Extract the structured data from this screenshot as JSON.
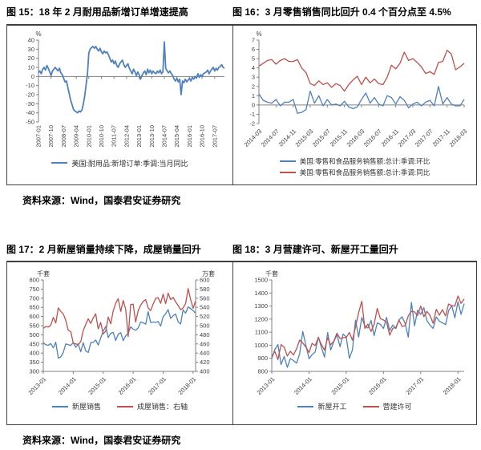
{
  "figures": [
    {
      "title": "图 15：18 年 2 月耐用品新增订单增速提高"
    },
    {
      "title": "图 16：3 月零售销售同比回升 0.4 个百分点至 4.5%"
    },
    {
      "title": "图 17：2 月新屋销量持续下降，成屋销量回升"
    },
    {
      "title": "图 18：3 月营建许可、新屋开工量回升"
    }
  ],
  "source_note": "资料来源：Wind，国泰君安证券研究",
  "colors": {
    "blue": "#4F81BD",
    "red": "#C0504D",
    "axis": "#808080",
    "text": "#404040",
    "border": "#404040"
  },
  "chart_data": [
    {
      "type": "line",
      "unit_left": "%",
      "ylim": [
        -50,
        40
      ],
      "yticks": [
        40,
        30,
        20,
        10,
        0,
        -10,
        -20,
        -30,
        -40,
        -50
      ],
      "x_tick_step": 9,
      "x_label_rotation": 90,
      "x_tick_labels": [
        "2007-01",
        "2007-10",
        "2008-07",
        "2009-04",
        "2010-01",
        "2010-10",
        "2011-07",
        "2012-04",
        "2013-01",
        "2013-10",
        "2014-07",
        "2015-04",
        "2016-01",
        "2016-10",
        "2017-07"
      ],
      "legend_layout": "row",
      "series": [
        {
          "name": "美国:耐用品:新增订单:季调:当月同比",
          "color": "#4F81BD",
          "axis": "left",
          "width": 1.8,
          "values": [
            4,
            6,
            3,
            8,
            10,
            7,
            12,
            9,
            5,
            1,
            6,
            8,
            10,
            8,
            6,
            9,
            4,
            2,
            -2,
            -6,
            -5,
            -12,
            -19,
            -26,
            -31,
            -36,
            -38,
            -39,
            -40,
            -38,
            -39,
            -37,
            -31,
            -22,
            -10,
            3,
            26,
            30,
            32,
            33,
            31,
            33,
            30,
            28,
            31,
            27,
            25,
            28,
            26,
            27,
            24,
            20,
            16,
            18,
            14,
            17,
            12,
            10,
            14,
            16,
            18,
            13,
            10,
            12,
            14,
            9,
            6,
            3,
            8,
            5,
            1,
            5,
            2,
            -3,
            1,
            4,
            6,
            2,
            8,
            4,
            7,
            3,
            6,
            4,
            3,
            6,
            4,
            7,
            3,
            5,
            38,
            9,
            6,
            4,
            6,
            3,
            1,
            -3,
            -5,
            -2,
            -6,
            -3,
            -20,
            -5,
            -7,
            -3,
            -6,
            -4,
            -2,
            -5,
            -1,
            -3,
            0,
            -2,
            3,
            -1,
            2,
            0,
            3,
            4,
            5,
            7,
            3,
            6,
            8,
            10,
            6,
            9,
            7,
            10,
            11,
            13,
            10,
            9
          ]
        }
      ]
    },
    {
      "type": "line",
      "unit_left": "%",
      "ylim": [
        -2,
        7
      ],
      "yticks": [
        7,
        6,
        5,
        4,
        3,
        2,
        1,
        0,
        -1,
        -2
      ],
      "x_tick_step": 4,
      "x_label_rotation": 45,
      "x_tick_labels": [
        "2014-03",
        "2014-07",
        "2014-11",
        "2015-03",
        "2015-07",
        "2015-11",
        "2016-03",
        "2016-07",
        "2016-11",
        "2017-03",
        "2017-07",
        "2017-11",
        "2018-03"
      ],
      "legend_layout": "column",
      "series": [
        {
          "name": "美国:零售和食品服务销售额:总计:季调:环比",
          "color": "#4F81BD",
          "axis": "left",
          "width": 1.3,
          "values": [
            1.2,
            0.5,
            0.3,
            0.2,
            0.6,
            -0.1,
            0.3,
            0.3,
            0.6,
            -0.9,
            -0.8,
            -0.5,
            1.5,
            0.2,
            1.0,
            -0.1,
            0.6,
            0.0,
            0.1,
            -0.1,
            0.4,
            -0.2,
            -0.4,
            -0.2,
            0.6,
            1.3,
            0.2,
            0.8,
            0.1,
            -0.1,
            1.0,
            0.8,
            0.1,
            0.9,
            0.5,
            -0.3,
            0.1,
            0.3,
            -0.1,
            0.3,
            0.5,
            -0.1,
            2.0,
            0.1,
            0.8,
            0.1,
            -0.1,
            -0.1,
            0.6
          ]
        },
        {
          "name": "美国:零售和食品服务销售额:总计:季调:同比",
          "color": "#C0504D",
          "axis": "left",
          "width": 1.3,
          "values": [
            4.2,
            4.5,
            4.8,
            4.9,
            4.4,
            4.8,
            5.0,
            4.7,
            4.7,
            4.9,
            4.0,
            3.5,
            2.3,
            2.1,
            2.6,
            2.2,
            2.4,
            1.9,
            2.3,
            2.1,
            1.5,
            2.2,
            2.7,
            3.1,
            2.2,
            3.0,
            2.4,
            2.8,
            2.3,
            2.2,
            3.0,
            4.3,
            3.9,
            4.5,
            5.7,
            4.8,
            5.0,
            4.6,
            4.1,
            3.4,
            3.6,
            3.3,
            4.6,
            4.7,
            5.9,
            5.5,
            3.8,
            4.1,
            4.5
          ]
        }
      ]
    },
    {
      "type": "line",
      "unit_left": "千套",
      "unit_right": "万套",
      "ylim": [
        300,
        800
      ],
      "yticks": [
        800,
        750,
        700,
        650,
        600,
        550,
        500,
        450,
        400,
        350,
        300
      ],
      "ylim_right": [
        400,
        600
      ],
      "yticks_right": [
        600,
        580,
        560,
        540,
        520,
        500,
        480,
        460,
        440,
        420,
        400
      ],
      "x_tick_step": 12,
      "x_label_rotation": 45,
      "x_tick_labels": [
        "2013-01",
        "2014-01",
        "2015-01",
        "2016-01",
        "2017-01",
        "2018-01"
      ],
      "legend_layout": "row",
      "series": [
        {
          "name": "新屋销售",
          "color": "#4F81BD",
          "axis": "left",
          "width": 1.3,
          "values": [
            458,
            445,
            443,
            452,
            429,
            459,
            373,
            379,
            403,
            450,
            446,
            442,
            457,
            432,
            449,
            408,
            457,
            412,
            403,
            457,
            459,
            472,
            444,
            482,
            521,
            545,
            485,
            508,
            513,
            469,
            503,
            512,
            468,
            495,
            508,
            544,
            531,
            525,
            538,
            570,
            566,
            558,
            627,
            567,
            570,
            568,
            573,
            548,
            599,
            615,
            638,
            590,
            604,
            614,
            571,
            559,
            637,
            618,
            653,
            643,
            633,
            618
          ]
        },
        {
          "name": "成屋销售：右轴",
          "color": "#C0504D",
          "axis": "right",
          "width": 1.3,
          "values": [
            494,
            498,
            497,
            501,
            518,
            506,
            539,
            531,
            526,
            512,
            490,
            487,
            462,
            460,
            459,
            465,
            489,
            503,
            515,
            505,
            517,
            526,
            493,
            507,
            482,
            488,
            519,
            504,
            532,
            549,
            559,
            531,
            555,
            536,
            476,
            546,
            547,
            508,
            533,
            545,
            553,
            557,
            539,
            533,
            547,
            560,
            561,
            549,
            569,
            548,
            571,
            557,
            562,
            552,
            544,
            535,
            539,
            548,
            581,
            557,
            538,
            554
          ]
        }
      ]
    },
    {
      "type": "line",
      "unit_left": "千套",
      "ylim": [
        800,
        1500
      ],
      "yticks": [
        1500,
        1400,
        1300,
        1200,
        1100,
        1000,
        900,
        800
      ],
      "x_tick_step": 12,
      "x_label_rotation": 45,
      "x_tick_labels": [
        "2013-01",
        "2014-01",
        "2015-01",
        "2016-01",
        "2017-01",
        "2018-01"
      ],
      "legend_layout": "row",
      "series": [
        {
          "name": "新屋开工",
          "color": "#4F81BD",
          "axis": "left",
          "width": 1.3,
          "values": [
            898,
            969,
            1005,
            852,
            915,
            831,
            898,
            883,
            863,
            936,
            1105,
            999,
            897,
            928,
            950,
            1063,
            984,
            909,
            1098,
            964,
            1028,
            1080,
            989,
            1087,
            1063,
            900,
            964,
            1192,
            1063,
            1213,
            1147,
            1132,
            1189,
            1073,
            1171,
            1160,
            1128,
            1213,
            1113,
            1155,
            1128,
            1195,
            1218,
            1164,
            1062,
            1328,
            1149,
            1268,
            1236,
            1288,
            1189,
            1154,
            1129,
            1217,
            1185,
            1172,
            1158,
            1265,
            1303,
            1210,
            1334,
            1236,
            1319
          ]
        },
        {
          "name": "营建许可",
          "color": "#C0504D",
          "axis": "left",
          "width": 1.3,
          "values": [
            915,
            952,
            890,
            1005,
            985,
            918,
            954,
            926,
            974,
            1040,
            1017,
            986,
            945,
            1014,
            997,
            1059,
            1005,
            963,
            1057,
            1003,
            1031,
            1092,
            1052,
            1058,
            1060,
            1098,
            1038,
            1140,
            1250,
            1337,
            1130,
            1161,
            1105,
            1161,
            1282,
            1204,
            1193,
            1177,
            1077,
            1130,
            1136,
            1193,
            1144,
            1152,
            1225,
            1260,
            1255,
            1228,
            1300,
            1219,
            1260,
            1228,
            1168,
            1275,
            1230,
            1272,
            1225,
            1316,
            1303,
            1300,
            1377,
            1321,
            1354
          ]
        }
      ]
    }
  ]
}
